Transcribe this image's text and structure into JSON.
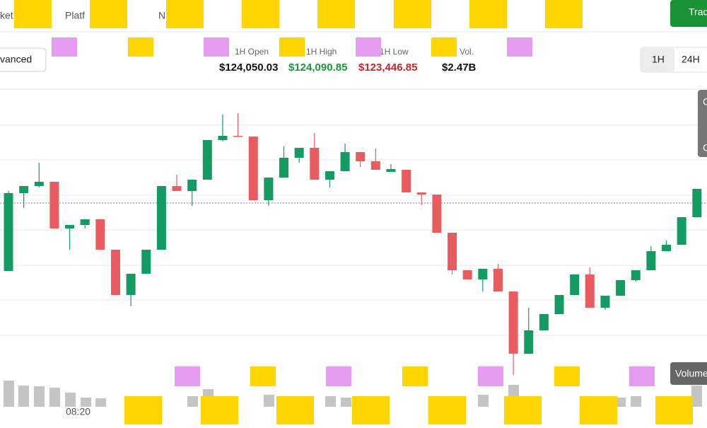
{
  "nav": [
    "ket",
    "Platf",
    "N"
  ],
  "trade_button": "Trad",
  "mode_button": "vanced",
  "stats": [
    {
      "label": "1H Open",
      "value": "$124,050.03"
    },
    {
      "label": "1H High",
      "value": "$124,090.85"
    },
    {
      "label": "1H Low",
      "value": "$123,446.85"
    },
    {
      "label": "Vol.",
      "value": "$2.47B"
    }
  ],
  "timeframes": [
    "1H",
    "24H"
  ],
  "side_labels": [
    "C",
    "C"
  ],
  "volume_label": "Volume",
  "time_labels": [
    "08:20"
  ],
  "price_chart": {
    "ylim": [
      122700,
      124500
    ],
    "last_price": 123872,
    "up_color": "#149b62",
    "down_color": "#e85c5f",
    "ohlc": [
      [
        123488,
        123940,
        123488,
        123928
      ],
      [
        123928,
        123968,
        123844,
        123968
      ],
      [
        123968,
        124100,
        123960,
        123992
      ],
      [
        123992,
        123992,
        123728,
        123728
      ],
      [
        123728,
        123748,
        123608,
        123748
      ],
      [
        123748,
        123780,
        123728,
        123780
      ],
      [
        123780,
        123780,
        123608,
        123608
      ],
      [
        123608,
        123608,
        123352,
        123352
      ],
      [
        123352,
        123472,
        123288,
        123472
      ],
      [
        123472,
        123608,
        123472,
        123608
      ],
      [
        123608,
        123968,
        123608,
        123968
      ],
      [
        123968,
        124032,
        123940,
        123940
      ],
      [
        123940,
        124004,
        123856,
        124004
      ],
      [
        124004,
        124228,
        124004,
        124228
      ],
      [
        124228,
        124372,
        124220,
        124252
      ],
      [
        124252,
        124380,
        124248,
        124248
      ],
      [
        124248,
        124248,
        123888,
        123888
      ],
      [
        123888,
        124016,
        123856,
        124016
      ],
      [
        124016,
        124192,
        124016,
        124128
      ],
      [
        124128,
        124184,
        124100,
        124184
      ],
      [
        124184,
        124268,
        124004,
        124004
      ],
      [
        124004,
        124052,
        123960,
        124052
      ],
      [
        124052,
        124208,
        124052,
        124160
      ],
      [
        124160,
        124160,
        124076,
        124108
      ],
      [
        124108,
        124180,
        124060,
        124060
      ],
      [
        124048,
        124092,
        124048,
        124064
      ],
      [
        124060,
        124060,
        123932,
        123932
      ],
      [
        123932,
        123932,
        123860,
        123920
      ],
      [
        123920,
        123920,
        123704,
        123704
      ],
      [
        123704,
        123704,
        123468,
        123492
      ],
      [
        123492,
        123492,
        123440,
        123440
      ],
      [
        123440,
        123500,
        123372,
        123500
      ],
      [
        123500,
        123528,
        123372,
        123372
      ],
      [
        123372,
        123372,
        122900,
        123020
      ],
      [
        123020,
        123280,
        123020,
        123152
      ],
      [
        123152,
        123244,
        123152,
        123244
      ],
      [
        123244,
        123352,
        123244,
        123352
      ],
      [
        123352,
        123468,
        123352,
        123468
      ],
      [
        123468,
        123508,
        123280,
        123280
      ],
      [
        123280,
        123348,
        123268,
        123348
      ],
      [
        123348,
        123436,
        123348,
        123436
      ],
      [
        123436,
        123492,
        123428,
        123492
      ],
      [
        123492,
        123628,
        123492,
        123600
      ],
      [
        123600,
        123660,
        123600,
        123636
      ],
      [
        123636,
        123792,
        123636,
        123792
      ],
      [
        123792,
        123952,
        123792,
        123952
      ]
    ]
  }
}
